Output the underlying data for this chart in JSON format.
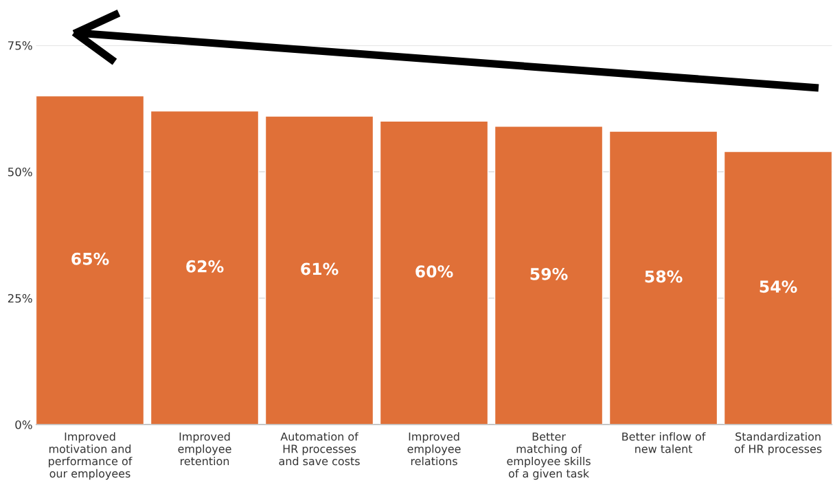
{
  "chart_data": {
    "type": "bar",
    "categories": [
      "Improved\nmotivation and\nperformance of\nour employees",
      "Improved\nemployee\nretention",
      "Automation of\nHR processes\nand save costs",
      "Improved\nemployee\nrelations",
      "Better\nmatching of\nemployee skills\nof a given task",
      "Better inflow of\nnew talent",
      "Standardization\nof HR processes"
    ],
    "values": [
      65,
      62,
      61,
      60,
      59,
      58,
      54
    ],
    "color": "#e07038",
    "value_labels": [
      "65%",
      "62%",
      "61%",
      "60%",
      "59%",
      "58%",
      "54%"
    ],
    "ylim": [
      0,
      75
    ],
    "yticks": [
      {
        "value": 0,
        "label": "0%"
      },
      {
        "value": 25,
        "label": "25%"
      },
      {
        "value": 50,
        "label": "50%"
      },
      {
        "value": 75,
        "label": "75%"
      }
    ],
    "grid": "y"
  }
}
